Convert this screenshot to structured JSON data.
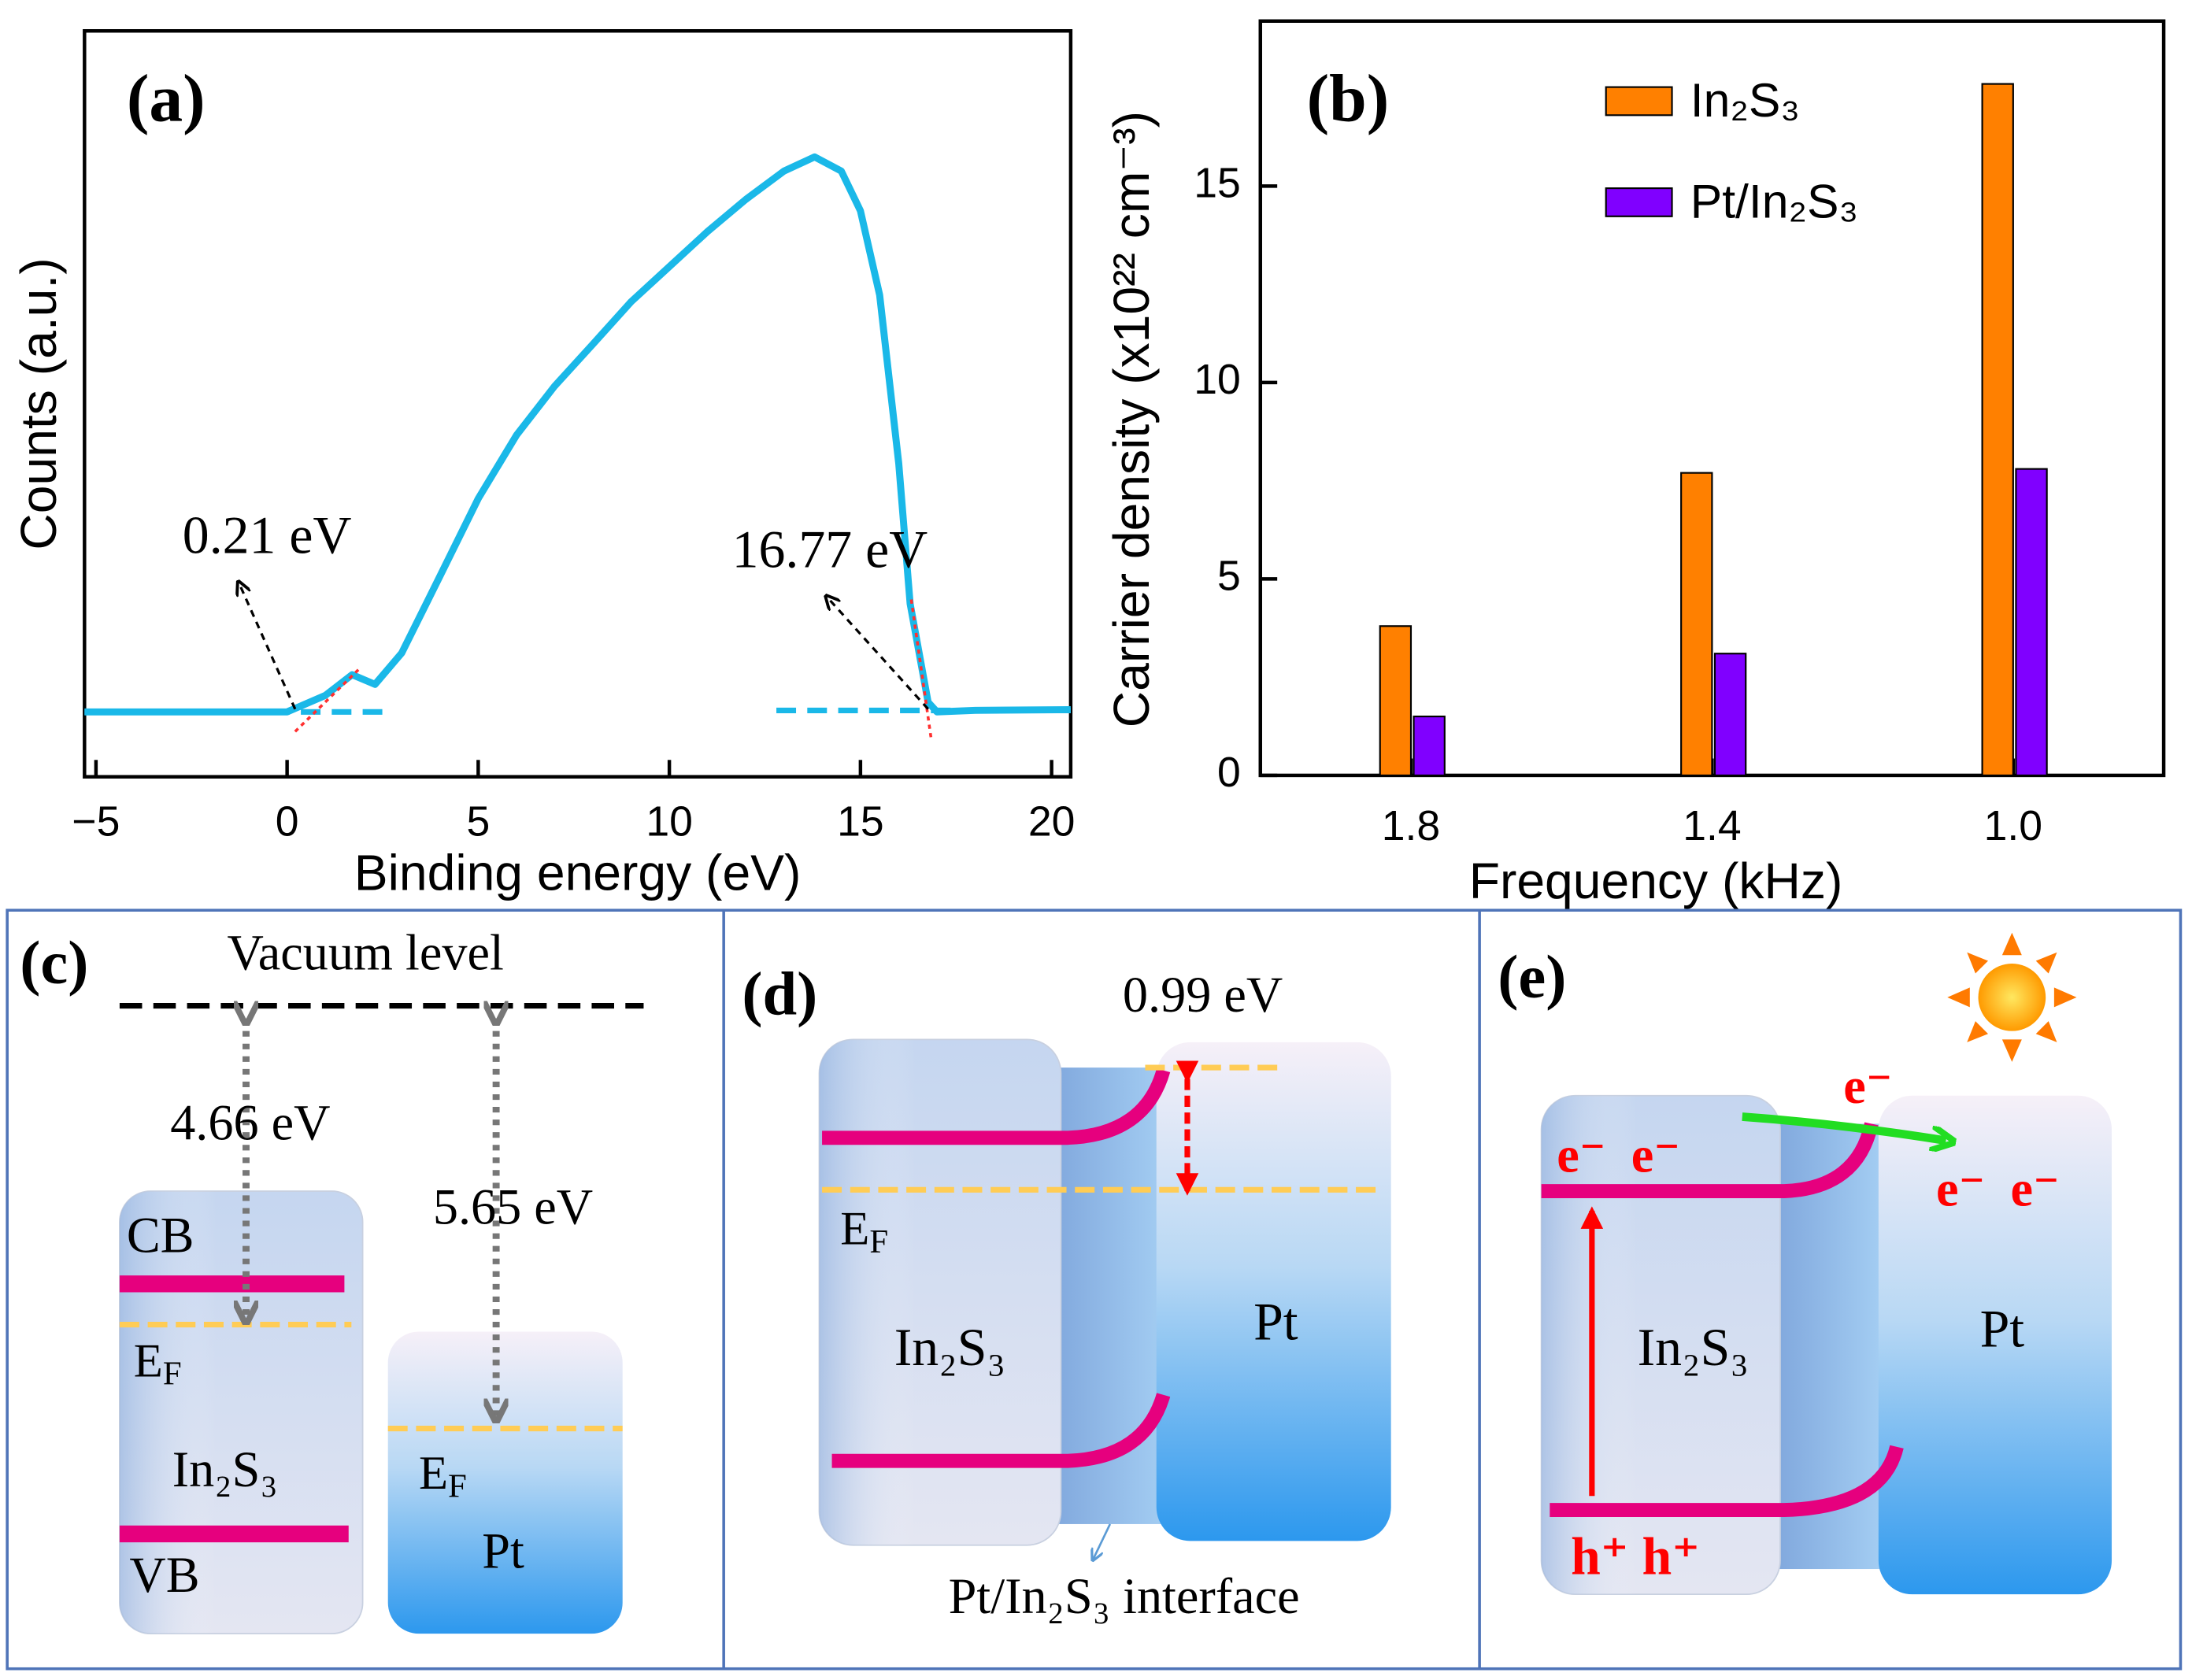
{
  "chart_data": [
    {
      "type": "line",
      "panel_label": "(a)",
      "x_label": "Binding energy (eV)",
      "y_label": "Counts (a.u.)",
      "x": [
        -5.3,
        0,
        1.0,
        1.7,
        2.3,
        3,
        4,
        5,
        6,
        7,
        8,
        9,
        10,
        11,
        12,
        13,
        13.8,
        14.5,
        15,
        15.5,
        16,
        16.3,
        16.77,
        17,
        18,
        20.5
      ],
      "series": [
        {
          "color": "#1ab8e8",
          "values": [
            8.7,
            8.7,
            10.9,
            13.7,
            12.4,
            16.6,
            26.9,
            37.3,
            45.8,
            52.4,
            58.0,
            63.7,
            68.4,
            73.1,
            77.4,
            81.2,
            83.1,
            81.2,
            75.9,
            64.6,
            42.0,
            23.2,
            10.0,
            8.7,
            8.9,
            9.0
          ]
        }
      ],
      "baselines": [
        {
          "x": [
            -5.3,
            2.5
          ],
          "y": 8.7
        },
        {
          "x": [
            12.8,
            20.5
          ],
          "y": 8.9
        }
      ],
      "annotations": [
        {
          "x": 0.21,
          "label": "0.21 eV"
        },
        {
          "x": 16.77,
          "label": "16.77 eV"
        }
      ],
      "xlim": [
        -5.3,
        20.5
      ],
      "ylim": [
        0,
        100
      ],
      "xticks": [
        {
          "value": -5,
          "label": "−5"
        },
        0,
        5,
        10,
        15,
        20
      ]
    },
    {
      "type": "bar",
      "panel_label": "(b)",
      "x_label": "Frequency (kHz)",
      "y_label": "Carrier density (x10²² cm⁻³)",
      "categories": [
        "1.8",
        "1.4",
        "1.0"
      ],
      "series": [
        {
          "name": "In₂S₃",
          "color": "#ff8000",
          "values": [
            3.8,
            7.7,
            17.6
          ]
        },
        {
          "name": "Pt/In₂S₃",
          "color": "#8000ff",
          "values": [
            1.5,
            3.1,
            7.8
          ]
        }
      ],
      "ylim": [
        0,
        19.2
      ],
      "yticks": [
        0,
        5,
        10,
        15
      ],
      "legend": "top"
    }
  ],
  "diagrams": {
    "c": {
      "label": "(c)",
      "vacuum_level": "Vacuum level",
      "gap_in2s3": "4.66 eV",
      "gap_pt": "5.65 eV",
      "cb": "CB",
      "vb": "VB",
      "ef_in2s3": {
        "main": "E",
        "sub": "F"
      },
      "ef_pt": {
        "main": "E",
        "sub": "F"
      },
      "in2s3": "In₂S₃",
      "pt": "Pt"
    },
    "d": {
      "label": "(d)",
      "barrier": "0.99 eV",
      "ef": {
        "main": "E",
        "sub": "F"
      },
      "in2s3": "In₂S₃",
      "pt": "Pt",
      "interface": "Pt/In₂S₃ interface"
    },
    "e": {
      "label": "(e)",
      "electron_top": "e⁻",
      "electrons_in2s3": "e⁻  e⁻",
      "electrons_pt": "e⁻  e⁻",
      "holes": "h⁺ h⁺",
      "in2s3": "In₂S₃",
      "pt": "Pt"
    }
  }
}
